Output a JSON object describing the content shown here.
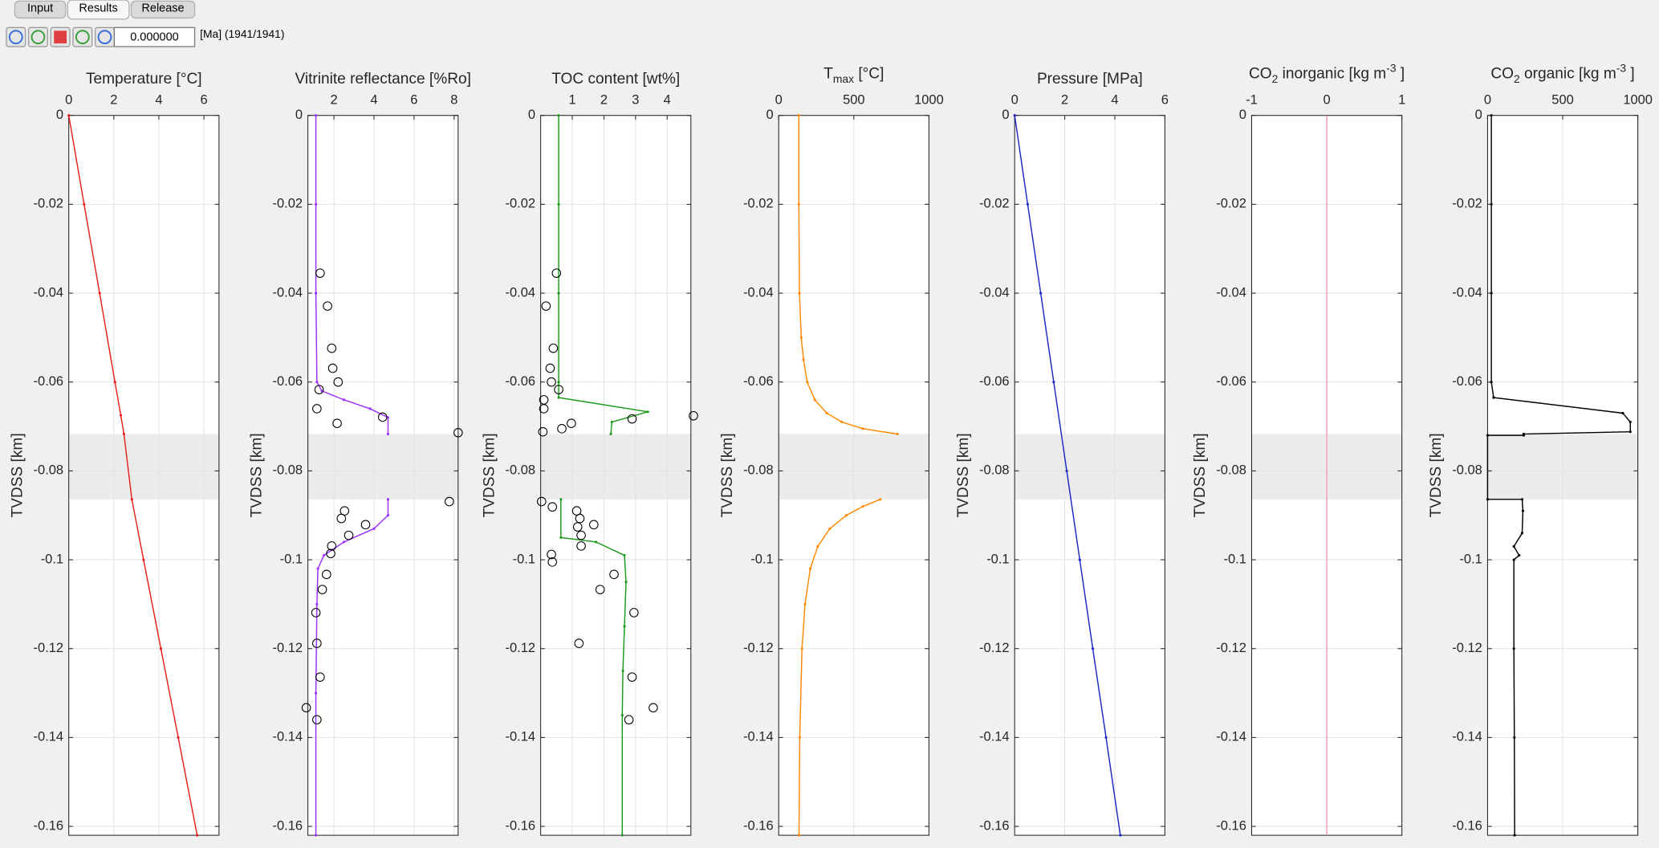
{
  "ui": {
    "tabs": [
      "Input",
      "Results",
      "Release"
    ],
    "active_tab": 1,
    "time_field": "0.000000",
    "time_note": "[Ma] (1941/1941)"
  },
  "chart_data": [
    {
      "type": "line",
      "title": [
        {
          "text": "Temperature [°C]"
        }
      ],
      "ylabel": "TVDSS [km]",
      "xlim": [
        0,
        6.67
      ],
      "xticks": [
        0,
        2,
        4,
        6
      ],
      "ylim": [
        0,
        -0.162
      ],
      "yticks": [
        0,
        -0.02,
        -0.04,
        -0.06,
        -0.08,
        -0.1,
        -0.12,
        -0.14,
        -0.16
      ],
      "grid": true,
      "shaded_range": [
        -0.0717,
        -0.0864
      ],
      "shade_color": "#ebebeb",
      "series": [
        {
          "color": "#e8201c",
          "line": true,
          "marker": "dot",
          "y": [
            0,
            -0.02,
            -0.04,
            -0.06,
            -0.0675,
            -0.0717,
            -0.0864,
            -0.1,
            -0.12,
            -0.14,
            -0.162
          ],
          "x": [
            0,
            0.68,
            1.37,
            2.05,
            2.31,
            2.45,
            2.8,
            3.32,
            4.09,
            4.86,
            5.7
          ]
        }
      ]
    },
    {
      "type": "line",
      "title": [
        {
          "text": "Vitrinite reflectance [%Ro]"
        }
      ],
      "ylabel": "TVDSS [km]",
      "xlim": [
        0.7,
        8.2
      ],
      "xticks": [
        2,
        4,
        6,
        8
      ],
      "ylim": [
        0,
        -0.162
      ],
      "yticks": [
        0,
        -0.02,
        -0.04,
        -0.06,
        -0.08,
        -0.1,
        -0.12,
        -0.14,
        -0.16
      ],
      "grid": true,
      "shaded_range": [
        -0.0717,
        -0.0864
      ],
      "shade_color": "#ebebeb",
      "series": [
        {
          "color": "#9b30ff",
          "line": true,
          "marker": "dot",
          "y": [
            0,
            -0.02,
            -0.04,
            -0.06,
            -0.062,
            -0.064,
            -0.066,
            -0.068,
            -0.0717,
            null,
            -0.0864,
            -0.09,
            -0.093,
            -0.096,
            -0.099,
            -0.102,
            -0.11,
            -0.13,
            -0.162
          ],
          "x": [
            1.1,
            1.1,
            1.1,
            1.15,
            1.4,
            2.5,
            3.8,
            4.7,
            4.7,
            null,
            4.7,
            4.7,
            4.0,
            2.5,
            1.5,
            1.2,
            1.15,
            1.1,
            1.1
          ]
        },
        {
          "color": "#000000",
          "line": false,
          "marker": "circle",
          "y": [
            -0.0355,
            -0.0429,
            -0.0524,
            -0.0569,
            -0.06,
            -0.0617,
            -0.066,
            -0.0679,
            -0.0693,
            -0.0714,
            -0.0869,
            -0.089,
            -0.0907,
            -0.0921,
            -0.0945,
            -0.0969,
            -0.0986,
            -0.1033,
            -0.1067,
            -0.1119,
            -0.1188,
            -0.1264,
            -0.1333,
            -0.136
          ],
          "x": [
            1.31,
            1.68,
            1.89,
            1.94,
            2.21,
            1.26,
            1.15,
            4.43,
            2.16,
            8.2,
            7.76,
            2.53,
            2.37,
            3.58,
            2.74,
            1.89,
            1.84,
            1.63,
            1.42,
            1.1,
            1.15,
            1.31,
            0.62,
            1.15
          ]
        }
      ]
    },
    {
      "type": "line",
      "title": [
        {
          "text": "TOC  content [wt%]"
        }
      ],
      "ylabel": "TVDSS [km]",
      "xlim": [
        0,
        4.75
      ],
      "xticks": [
        1,
        2,
        3,
        4
      ],
      "ylim": [
        0,
        -0.162
      ],
      "yticks": [
        0,
        -0.02,
        -0.04,
        -0.06,
        -0.08,
        -0.1,
        -0.12,
        -0.14,
        -0.16
      ],
      "grid": true,
      "shaded_range": [
        -0.0717,
        -0.0864
      ],
      "shade_color": "#ebebeb",
      "series": [
        {
          "color": "#1a9a1a",
          "line": true,
          "marker": "dot",
          "y": [
            0,
            -0.02,
            -0.04,
            -0.06,
            -0.0635,
            -0.0667,
            -0.069,
            -0.0717,
            null,
            -0.0864,
            -0.095,
            -0.096,
            -0.099,
            -0.105,
            -0.115,
            -0.125,
            -0.135,
            -0.162
          ],
          "x": [
            0.57,
            0.57,
            0.57,
            0.57,
            0.57,
            3.39,
            2.25,
            2.22,
            null,
            0.64,
            0.64,
            1.75,
            2.65,
            2.7,
            2.65,
            2.6,
            2.58,
            2.58
          ]
        },
        {
          "color": "#000000",
          "line": false,
          "marker": "circle",
          "y": [
            -0.0355,
            -0.0429,
            -0.0524,
            -0.0569,
            -0.06,
            -0.0617,
            -0.064,
            -0.066,
            -0.0676,
            -0.0683,
            -0.0693,
            -0.0705,
            -0.0712,
            -0.0869,
            -0.0881,
            -0.089,
            -0.0907,
            -0.0921,
            -0.0926,
            -0.0945,
            -0.0969,
            -0.0988,
            -0.1005,
            -0.1033,
            -0.1067,
            -0.1119,
            -0.1188,
            -0.1264,
            -0.1333,
            -0.136
          ],
          "x": [
            0.5,
            0.17,
            0.4,
            0.3,
            0.34,
            0.57,
            0.1,
            0.1,
            4.83,
            2.89,
            0.97,
            0.67,
            0.07,
            0.03,
            0.37,
            1.14,
            1.24,
            1.68,
            1.17,
            1.28,
            1.28,
            0.34,
            0.37,
            2.32,
            1.88,
            2.95,
            1.21,
            2.89,
            3.56,
            2.79
          ]
        }
      ]
    },
    {
      "type": "line",
      "title": [
        {
          "text": "T"
        },
        {
          "text": "max",
          "shift": "sub"
        },
        {
          "text": " [°C]"
        }
      ],
      "ylabel": "TVDSS [km]",
      "xlim": [
        0,
        1000
      ],
      "xticks": [
        0,
        500,
        1000
      ],
      "ylim": [
        0,
        -0.162
      ],
      "yticks": [
        0,
        -0.02,
        -0.04,
        -0.06,
        -0.08,
        -0.1,
        -0.12,
        -0.14,
        -0.16
      ],
      "grid": true,
      "shaded_range": [
        -0.0717,
        -0.0864
      ],
      "shade_color": "#ebebeb",
      "series": [
        {
          "color": "#ff8800",
          "line": true,
          "marker": "dot",
          "y": [
            0,
            -0.02,
            -0.04,
            -0.05,
            -0.055,
            -0.06,
            -0.064,
            -0.067,
            -0.069,
            -0.0705,
            -0.0717,
            null,
            -0.0864,
            -0.088,
            -0.09,
            -0.093,
            -0.097,
            -0.102,
            -0.11,
            -0.12,
            -0.14,
            -0.162
          ],
          "x": [
            134,
            134,
            138,
            150,
            165,
            190,
            240,
            320,
            420,
            560,
            790,
            null,
            676,
            560,
            450,
            340,
            260,
            210,
            175,
            155,
            140,
            135
          ]
        }
      ]
    },
    {
      "type": "line",
      "title": [
        {
          "text": "Pressure [MPa]"
        }
      ],
      "ylabel": "TVDSS [km]",
      "xlim": [
        0,
        6
      ],
      "xticks": [
        0,
        2,
        4,
        6
      ],
      "ylim": [
        0,
        -0.162
      ],
      "yticks": [
        0,
        -0.02,
        -0.04,
        -0.06,
        -0.08,
        -0.1,
        -0.12,
        -0.14,
        -0.16
      ],
      "grid": true,
      "shaded_range": [
        -0.0717,
        -0.0864
      ],
      "shade_color": "#ebebeb",
      "series": [
        {
          "color": "#1a28c8",
          "line": true,
          "marker": "dot",
          "y": [
            0,
            -0.02,
            -0.04,
            -0.06,
            -0.08,
            -0.1,
            -0.12,
            -0.14,
            -0.162
          ],
          "x": [
            0,
            0.52,
            1.04,
            1.56,
            2.08,
            2.6,
            3.12,
            3.65,
            4.22
          ]
        }
      ]
    },
    {
      "type": "line",
      "title": [
        {
          "text": "CO"
        },
        {
          "text": "2",
          "shift": "sub"
        },
        {
          "text": " inorganic [kg m"
        },
        {
          "text": "-3",
          "shift": "super"
        },
        {
          "text": " ]"
        }
      ],
      "ylabel": "TVDSS [km]",
      "xlim": [
        -1,
        1
      ],
      "xticks": [
        -1,
        0,
        1
      ],
      "ylim": [
        0,
        -0.162
      ],
      "yticks": [
        0,
        -0.02,
        -0.04,
        -0.06,
        -0.08,
        -0.1,
        -0.12,
        -0.14,
        -0.16
      ],
      "grid": true,
      "shaded_range": [
        -0.0717,
        -0.0864
      ],
      "shade_color": "#ebebeb",
      "series": [
        {
          "color": "#ff99c2",
          "line": true,
          "marker": "none",
          "y": [
            0,
            -0.162
          ],
          "x": [
            0,
            0
          ]
        }
      ]
    },
    {
      "type": "line",
      "title": [
        {
          "text": "CO"
        },
        {
          "text": "2",
          "shift": "sub"
        },
        {
          "text": " organic [kg m"
        },
        {
          "text": "-3",
          "shift": "super"
        },
        {
          "text": " ]"
        }
      ],
      "ylabel": "TVDSS [km]",
      "xlim": [
        0,
        1000
      ],
      "xticks": [
        0,
        500,
        1000
      ],
      "ylim": [
        0,
        -0.162
      ],
      "yticks": [
        0,
        -0.02,
        -0.04,
        -0.06,
        -0.08,
        -0.1,
        -0.12,
        -0.14,
        -0.16
      ],
      "grid": true,
      "shaded_range": [
        -0.0717,
        -0.0864
      ],
      "shade_color": "#ebebeb",
      "series": [
        {
          "color": "#000000",
          "line": true,
          "marker": "dot",
          "y": [
            0,
            -0.02,
            -0.04,
            -0.06,
            -0.0635,
            -0.067,
            -0.069,
            -0.0712,
            -0.0717,
            -0.072,
            -0.072,
            -0.0864,
            -0.0864,
            -0.089,
            -0.094,
            -0.097,
            -0.099,
            -0.1,
            -0.12,
            -0.14,
            -0.162
          ],
          "x": [
            25,
            25,
            25,
            25,
            40,
            900,
            950,
            950,
            240,
            240,
            0,
            0,
            230,
            235,
            230,
            175,
            210,
            175,
            175,
            178,
            180
          ]
        }
      ]
    }
  ]
}
